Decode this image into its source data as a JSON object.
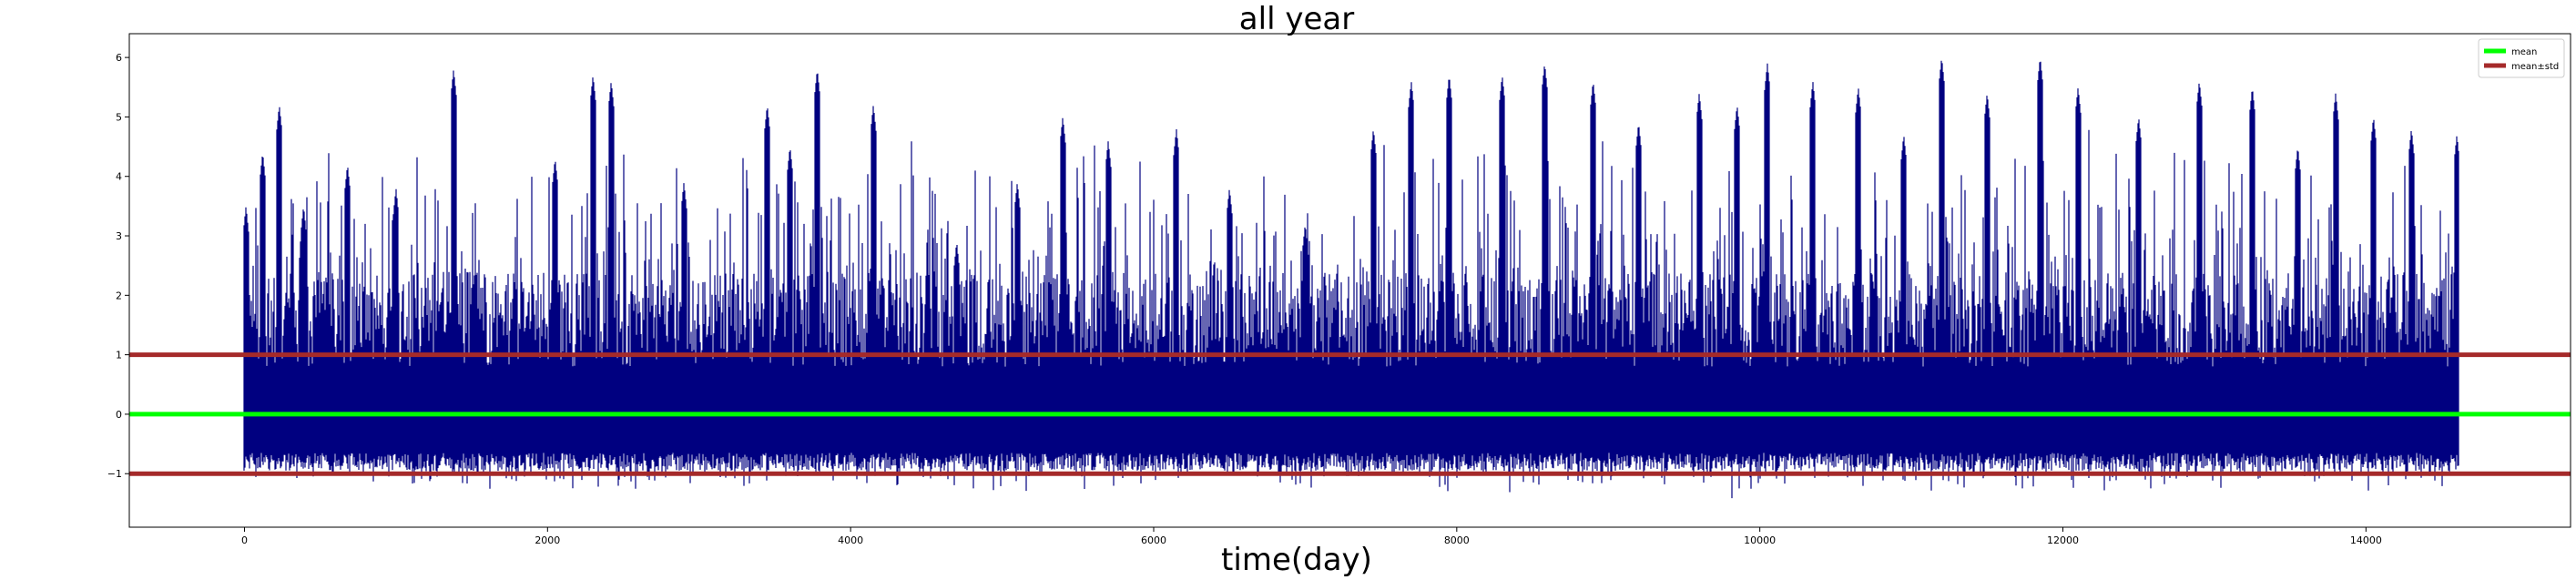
{
  "chart_data": {
    "type": "line",
    "title": "all year",
    "xlabel": "time(day)",
    "ylabel": "",
    "xlim": [
      -760,
      15350
    ],
    "ylim": [
      -1.9,
      6.4
    ],
    "xticks": [
      0,
      2000,
      4000,
      6000,
      8000,
      10000,
      12000,
      14000
    ],
    "xtick_labels": [
      "0",
      "2000",
      "4000",
      "6000",
      "8000",
      "10000",
      "12000",
      "14000"
    ],
    "yticks": [
      -1,
      0,
      1,
      2,
      3,
      4,
      5,
      6
    ],
    "ytick_labels": [
      "−1",
      "0",
      "1",
      "2",
      "3",
      "4",
      "5",
      "6"
    ],
    "grid": false,
    "legend_position": "top-right",
    "legend": [
      {
        "label": "mean",
        "color": "#00ff00"
      },
      {
        "label": "mean±std",
        "color": "#a52a2a"
      }
    ],
    "series": [
      {
        "label": "",
        "color": "#000080",
        "x_start": 0,
        "x_end": 14610,
        "typical_range": [
          -1.0,
          1.0
        ],
        "min": -1.5,
        "max": 6.0,
        "peaks": [
          {
            "x": 10,
            "y": 3.5
          },
          {
            "x": 120,
            "y": 4.4
          },
          {
            "x": 230,
            "y": 5.2
          },
          {
            "x": 390,
            "y": 3.5
          },
          {
            "x": 680,
            "y": 4.2
          },
          {
            "x": 1000,
            "y": 3.8
          },
          {
            "x": 1380,
            "y": 5.8
          },
          {
            "x": 1520,
            "y": 2.4
          },
          {
            "x": 2050,
            "y": 4.3
          },
          {
            "x": 2300,
            "y": 5.7
          },
          {
            "x": 2420,
            "y": 5.6
          },
          {
            "x": 2900,
            "y": 3.9
          },
          {
            "x": 3450,
            "y": 5.2
          },
          {
            "x": 3600,
            "y": 4.5
          },
          {
            "x": 3780,
            "y": 5.8
          },
          {
            "x": 4150,
            "y": 5.2
          },
          {
            "x": 4700,
            "y": 2.9
          },
          {
            "x": 5100,
            "y": 3.9
          },
          {
            "x": 5400,
            "y": 5.0
          },
          {
            "x": 5700,
            "y": 4.6
          },
          {
            "x": 6150,
            "y": 4.8
          },
          {
            "x": 6500,
            "y": 3.8
          },
          {
            "x": 7000,
            "y": 3.2
          },
          {
            "x": 7450,
            "y": 4.8
          },
          {
            "x": 7700,
            "y": 5.6
          },
          {
            "x": 7950,
            "y": 5.7
          },
          {
            "x": 8300,
            "y": 5.7
          },
          {
            "x": 8580,
            "y": 5.9
          },
          {
            "x": 8900,
            "y": 5.6
          },
          {
            "x": 9200,
            "y": 4.9
          },
          {
            "x": 9600,
            "y": 5.4
          },
          {
            "x": 9850,
            "y": 5.2
          },
          {
            "x": 10050,
            "y": 5.9
          },
          {
            "x": 10350,
            "y": 5.6
          },
          {
            "x": 10650,
            "y": 5.5
          },
          {
            "x": 10950,
            "y": 4.7
          },
          {
            "x": 11200,
            "y": 6.0
          },
          {
            "x": 11500,
            "y": 5.4
          },
          {
            "x": 11850,
            "y": 6.0
          },
          {
            "x": 12100,
            "y": 5.5
          },
          {
            "x": 12500,
            "y": 5.0
          },
          {
            "x": 12900,
            "y": 5.6
          },
          {
            "x": 13250,
            "y": 5.5
          },
          {
            "x": 13550,
            "y": 4.5
          },
          {
            "x": 13800,
            "y": 5.4
          },
          {
            "x": 14050,
            "y": 5.0
          },
          {
            "x": 14300,
            "y": 4.8
          },
          {
            "x": 14600,
            "y": 4.7
          }
        ]
      }
    ],
    "hlines": [
      {
        "label": "mean",
        "y": 0.0,
        "color": "#00ff00"
      },
      {
        "label": "mean+std",
        "y": 1.0,
        "color": "#a52a2a"
      },
      {
        "label": "mean-std",
        "y": -1.0,
        "color": "#a52a2a"
      }
    ]
  }
}
